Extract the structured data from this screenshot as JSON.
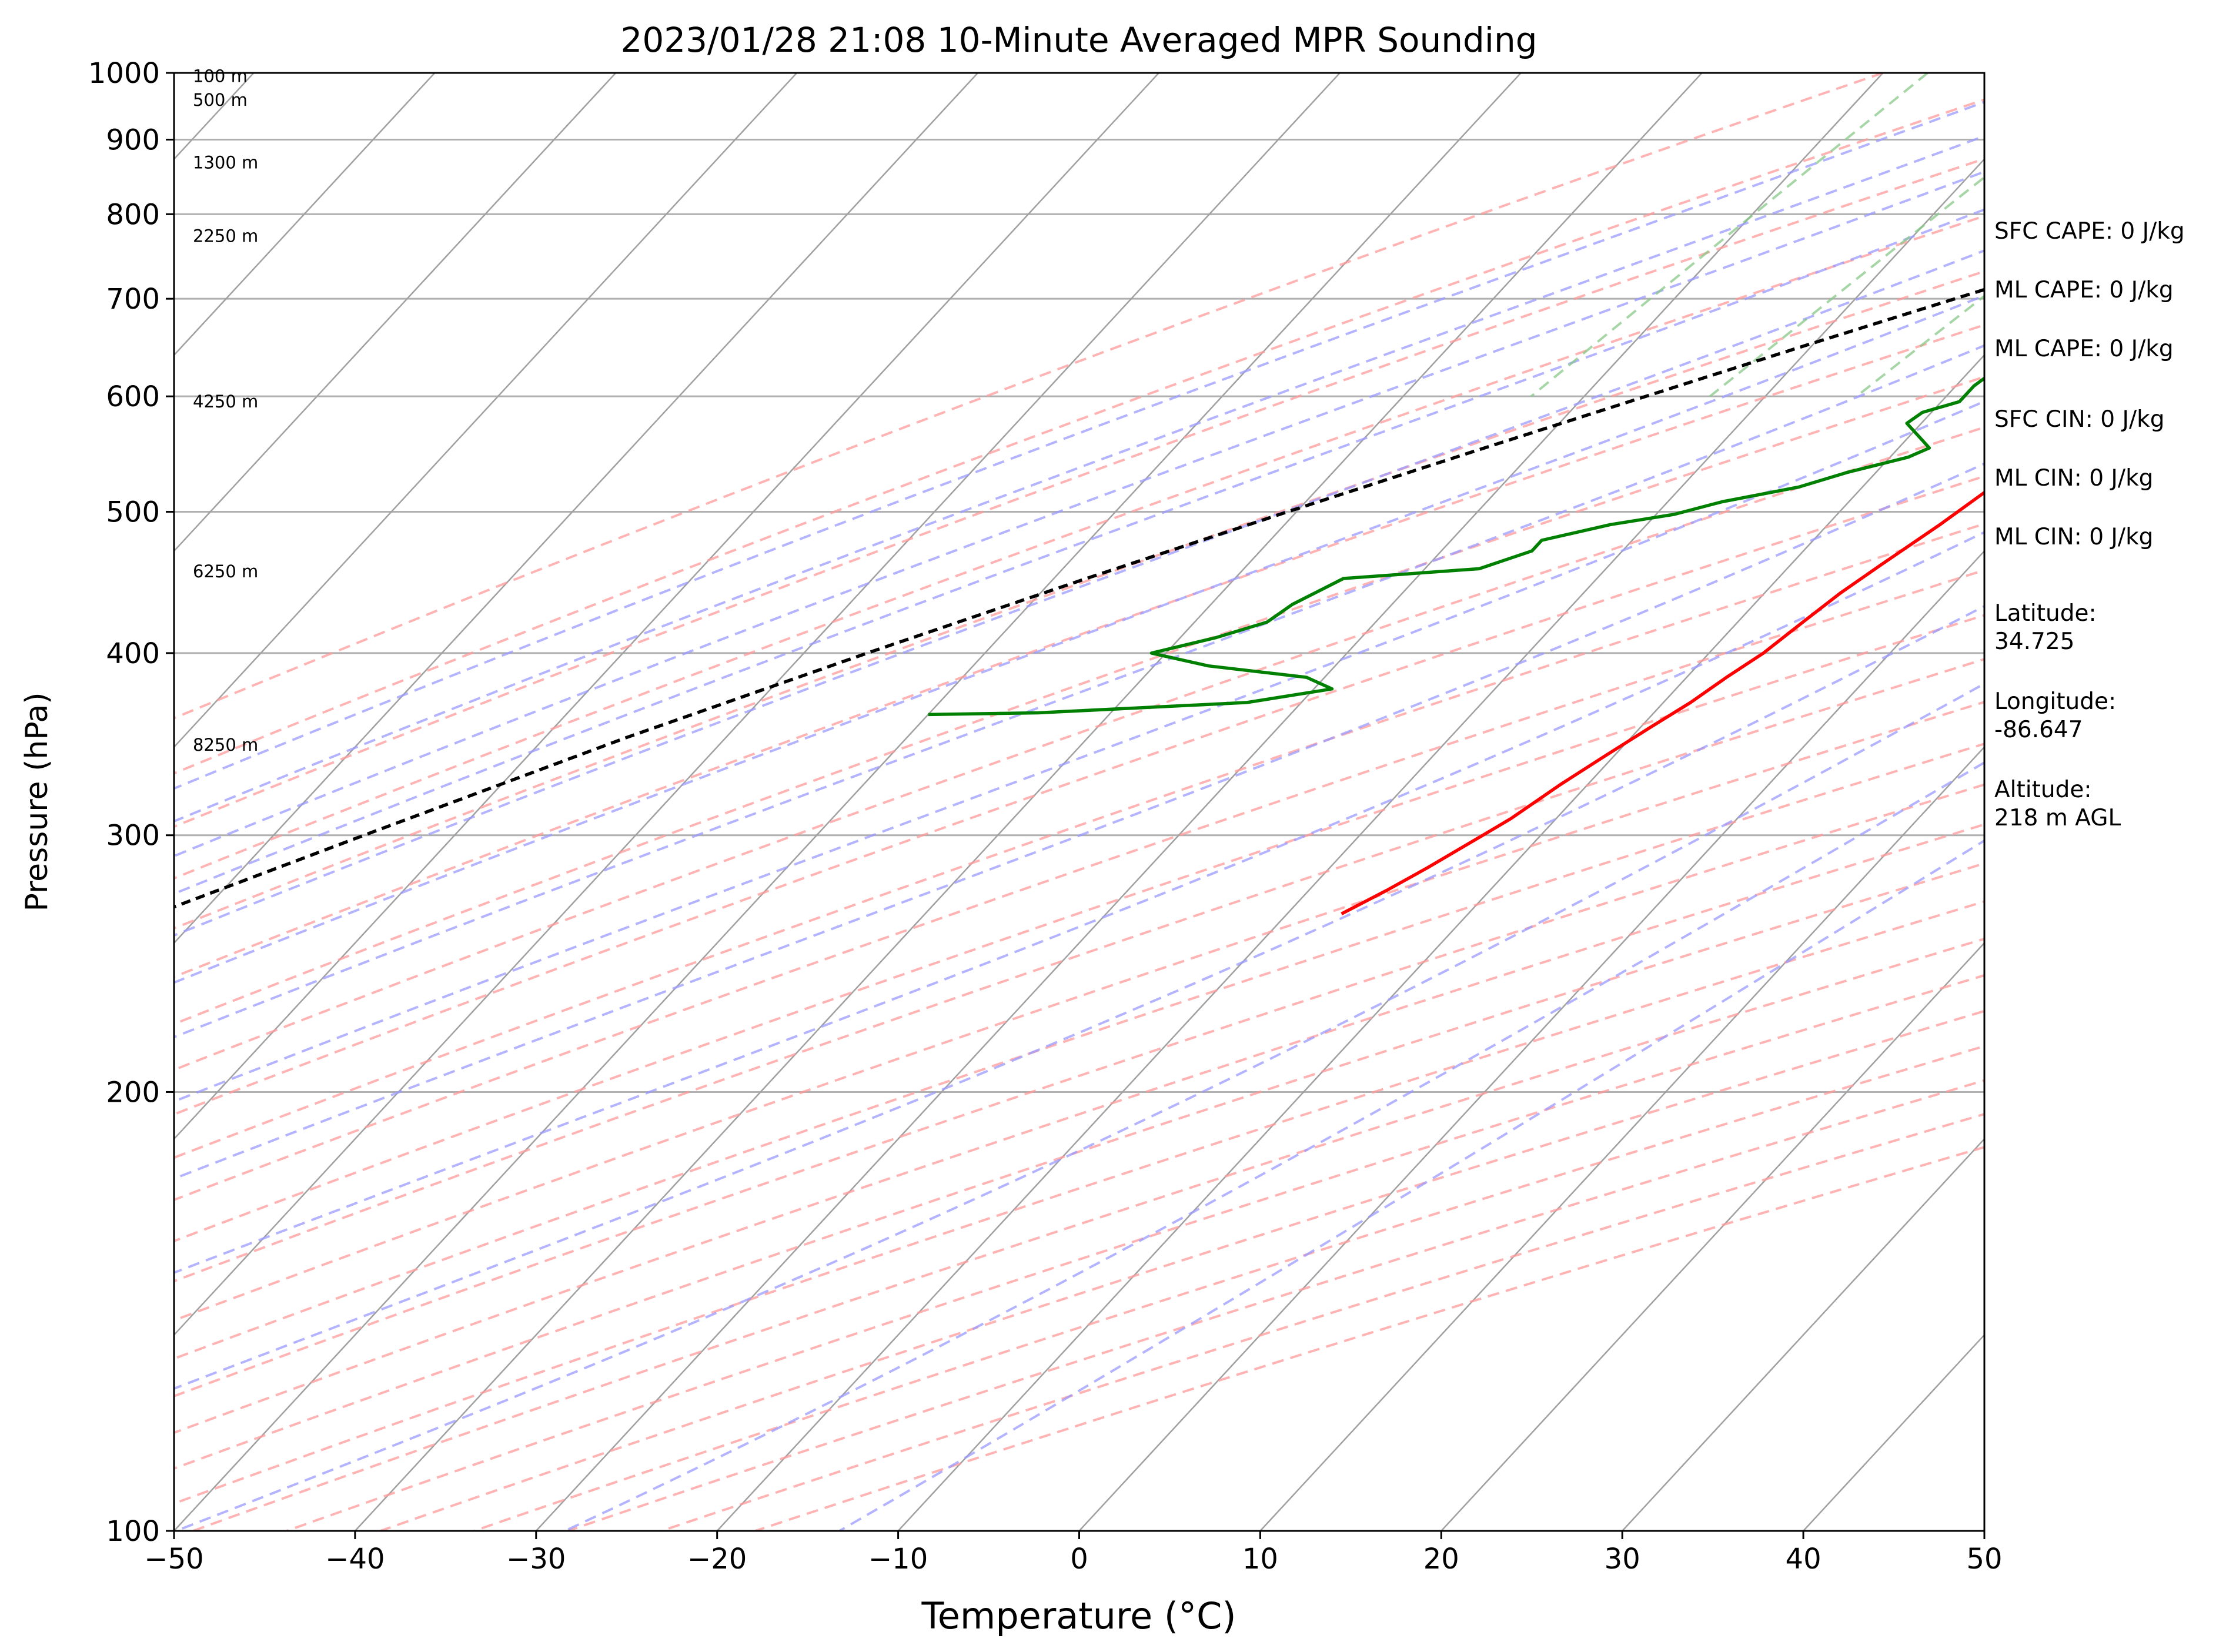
{
  "chart_data": {
    "type": "line",
    "title": "2023/01/28 21:08 10-Minute Averaged MPR Sounding",
    "xlabel": "Temperature (°C)",
    "ylabel": "Pressure (hPa)",
    "xlim": [
      -50,
      50
    ],
    "ylim": [
      1000,
      100
    ],
    "y_scale": "log",
    "skew": "skew-T log-P",
    "grid": true,
    "x_ticks": [
      "−50",
      "−40",
      "−30",
      "−20",
      "−10",
      "0",
      "10",
      "20",
      "30",
      "40",
      "50"
    ],
    "x_tick_values": [
      -50,
      -40,
      -30,
      -20,
      -10,
      0,
      10,
      20,
      30,
      40,
      50
    ],
    "y_ticks": [
      "100",
      "200",
      "300",
      "400",
      "500",
      "600",
      "700",
      "800",
      "900",
      "1000"
    ],
    "y_tick_values": [
      100,
      200,
      300,
      400,
      500,
      600,
      700,
      800,
      900,
      1000
    ],
    "colors": {
      "temperature": "#ff0000",
      "dewpoint": "#008000",
      "parcel": "#000000",
      "dry_adiabats": "#ff9999",
      "moist_adiabats": "#9999ff",
      "mixing_ratio": "#88c888",
      "isotherms": "#a0a0a0",
      "isobars": "#b0b0b0"
    },
    "series": [
      {
        "points": [
          [
            1000,
            15.2
          ],
          [
            985,
            14.5
          ],
          [
            975,
            12.5
          ],
          [
            960,
            9.0
          ],
          [
            945,
            7.2
          ],
          [
            925,
            5.8
          ],
          [
            905,
            5.0
          ],
          [
            885,
            4.4
          ],
          [
            865,
            4.2
          ],
          [
            840,
            4.1
          ],
          [
            815,
            4.0
          ],
          [
            790,
            3.8
          ],
          [
            760,
            3.4
          ],
          [
            730,
            3.2
          ],
          [
            700,
            3.2
          ],
          [
            680,
            2.8
          ],
          [
            655,
            2.2
          ],
          [
            630,
            1.5
          ],
          [
            605,
            0.8
          ],
          [
            585,
            -0.2
          ],
          [
            560,
            -1.0
          ],
          [
            540,
            -2.0
          ],
          [
            515,
            -3.0
          ],
          [
            490,
            -3.8
          ],
          [
            460,
            -5.0
          ],
          [
            440,
            -5.8
          ],
          [
            420,
            -6.4
          ],
          [
            400,
            -7.0
          ],
          [
            385,
            -7.8
          ],
          [
            370,
            -8.5
          ],
          [
            355,
            -9.5
          ],
          [
            340,
            -10.5
          ],
          [
            325,
            -11.5
          ],
          [
            308,
            -12.5
          ],
          [
            300,
            -13.2
          ],
          [
            285,
            -14.6
          ],
          [
            275,
            -15.7
          ],
          [
            265,
            -17.0
          ]
        ]
      },
      {
        "points": [
          [
            1000,
            -5.5
          ],
          [
            998,
            -7.0
          ],
          [
            995,
            -8.0
          ],
          [
            990,
            -8.5
          ],
          [
            975,
            -8.3
          ],
          [
            965,
            -9.0
          ],
          [
            955,
            -9.0
          ],
          [
            940,
            -8.0
          ],
          [
            920,
            -7.8
          ],
          [
            900,
            -6.0
          ],
          [
            885,
            -6.2
          ],
          [
            870,
            -6.0
          ],
          [
            858,
            -6.2
          ],
          [
            845,
            -5.8
          ],
          [
            835,
            -6.3
          ],
          [
            825,
            -5.0
          ],
          [
            812,
            -4.8
          ],
          [
            800,
            -4.7
          ],
          [
            790,
            -4.3
          ],
          [
            770,
            -4.9
          ],
          [
            750,
            -4.9
          ],
          [
            735,
            -3.9
          ],
          [
            720,
            -3.9
          ],
          [
            710,
            -3.9
          ],
          [
            700,
            -3.8
          ],
          [
            690,
            -4.3
          ],
          [
            670,
            -5.5
          ],
          [
            655,
            -7.1
          ],
          [
            645,
            -7.9
          ],
          [
            630,
            -8.5
          ],
          [
            610,
            -9.0
          ],
          [
            595,
            -9.0
          ],
          [
            585,
            -10.5
          ],
          [
            575,
            -10.8
          ],
          [
            560,
            -9.1
          ],
          [
            553,
            -8.3
          ],
          [
            545,
            -9.0
          ],
          [
            532,
            -11.6
          ],
          [
            520,
            -13.5
          ],
          [
            508,
            -17.0
          ],
          [
            498,
            -19.0
          ],
          [
            490,
            -22.0
          ],
          [
            478,
            -25.0
          ],
          [
            470,
            -25.0
          ],
          [
            457,
            -27.0
          ],
          [
            450,
            -34.0
          ],
          [
            432,
            -35.5
          ],
          [
            420,
            -36.0
          ],
          [
            410,
            -38.0
          ],
          [
            400,
            -40.8
          ],
          [
            392,
            -37.0
          ],
          [
            385,
            -31.0
          ],
          [
            378,
            -29.0
          ],
          [
            370,
            -33.0
          ],
          [
            364,
            -44.0
          ],
          [
            363,
            -50.0
          ]
        ]
      },
      {
        "points": [
          [
            1000,
            15.2
          ],
          [
            950,
            10.7
          ],
          [
            900,
            6.3
          ],
          [
            850,
            1.5
          ],
          [
            800,
            -3.7
          ],
          [
            750,
            -9.0
          ],
          [
            700,
            -14.5
          ],
          [
            650,
            -20.4
          ],
          [
            600,
            -26.6
          ],
          [
            550,
            -33.3
          ],
          [
            500,
            -40.5
          ],
          [
            450,
            -48.2
          ],
          [
            400,
            -56.5
          ],
          [
            350,
            -65.5
          ],
          [
            300,
            -75.0
          ],
          [
            265,
            -82.5
          ]
        ]
      }
    ],
    "height_labels": [
      {
        "label": "8250 m",
        "p": 346
      },
      {
        "label": "6250 m",
        "p": 455
      },
      {
        "label": "4250 m",
        "p": 595
      },
      {
        "label": "2250 m",
        "p": 773
      },
      {
        "label": "1300 m",
        "p": 868
      },
      {
        "label": "500 m",
        "p": 958
      },
      {
        "label": "100 m",
        "p": 995
      }
    ]
  },
  "info": [
    "SFC CAPE: 0 J/kg",
    "ML CAPE: 0 J/kg",
    "ML CAPE: 0 J/kg",
    "SFC CIN: 0 J/kg",
    "ML CIN: 0 J/kg",
    "ML CIN: 0 J/kg",
    "Latitude:\n34.725",
    "Longitude:\n-86.647",
    "Altitude:\n218 m AGL"
  ]
}
